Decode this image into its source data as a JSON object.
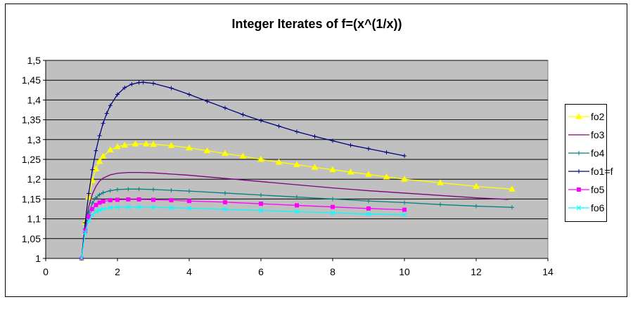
{
  "chart_data": {
    "type": "line",
    "title": "Integer Iterates of f=(x^(1/x))",
    "xlabel": "",
    "ylabel": "",
    "xlim": [
      0,
      14
    ],
    "ylim": [
      1,
      1.5
    ],
    "x_ticks": [
      0,
      2,
      4,
      6,
      8,
      10,
      12,
      14
    ],
    "x_tick_labels": [
      "0",
      "2",
      "4",
      "6",
      "8",
      "10",
      "12",
      "14"
    ],
    "y_ticks": [
      1,
      1.05,
      1.1,
      1.15,
      1.2,
      1.25,
      1.3,
      1.35,
      1.4,
      1.45,
      1.5
    ],
    "y_tick_labels": [
      "1",
      "1,05",
      "1,1",
      "1,15",
      "1,2",
      "1,25",
      "1,3",
      "1,35",
      "1,4",
      "1,45",
      "1,5"
    ],
    "grid": "horizontal",
    "plot_background": "#c0c0c0",
    "legend_position": "right",
    "series": [
      {
        "name": "fo2",
        "color": "#ffff00",
        "marker": "triangle",
        "x": [
          1,
          1.1,
          1.2,
          1.3,
          1.4,
          1.5,
          1.6,
          1.8,
          2,
          2.2,
          2.5,
          2.8,
          3,
          3.5,
          4,
          4.5,
          5,
          5.5,
          6,
          6.5,
          7,
          7.5,
          8,
          8.5,
          9,
          9.5,
          10,
          11,
          12,
          13
        ],
        "y": [
          1,
          1.092,
          1.155,
          1.197,
          1.226,
          1.245,
          1.258,
          1.274,
          1.282,
          1.286,
          1.289,
          1.289,
          1.288,
          1.285,
          1.279,
          1.272,
          1.265,
          1.258,
          1.25,
          1.243,
          1.237,
          1.23,
          1.224,
          1.218,
          1.212,
          1.206,
          1.2,
          1.191,
          1.182,
          1.175
        ]
      },
      {
        "name": "fo3",
        "color": "#800080",
        "marker": "none",
        "x": [
          1,
          1.1,
          1.2,
          1.3,
          1.4,
          1.5,
          1.6,
          1.8,
          2,
          2.3,
          2.6,
          3,
          3.5,
          4,
          5,
          6,
          7,
          8,
          9,
          10,
          11,
          12,
          12.9
        ],
        "y": [
          1,
          1.08,
          1.13,
          1.162,
          1.182,
          1.195,
          1.203,
          1.211,
          1.215,
          1.217,
          1.217,
          1.216,
          1.213,
          1.21,
          1.202,
          1.194,
          1.186,
          1.178,
          1.171,
          1.165,
          1.159,
          1.153,
          1.149
        ]
      },
      {
        "name": "fo4",
        "color": "#008080",
        "marker": "plus",
        "x": [
          1,
          1.1,
          1.2,
          1.3,
          1.4,
          1.5,
          1.6,
          1.8,
          2,
          2.3,
          2.6,
          3,
          3.5,
          4,
          5,
          6,
          7,
          8,
          9,
          10,
          11,
          12,
          13
        ],
        "y": [
          1,
          1.075,
          1.115,
          1.14,
          1.153,
          1.161,
          1.166,
          1.171,
          1.174,
          1.175,
          1.175,
          1.174,
          1.172,
          1.17,
          1.165,
          1.16,
          1.155,
          1.15,
          1.145,
          1.141,
          1.136,
          1.132,
          1.129
        ]
      },
      {
        "name": "fo1=f",
        "color": "#000080",
        "marker": "plus",
        "x": [
          1,
          1.1,
          1.2,
          1.3,
          1.4,
          1.5,
          1.6,
          1.7,
          1.8,
          2,
          2.2,
          2.4,
          2.6,
          2.718,
          3,
          3.5,
          4,
          4.5,
          5,
          5.5,
          6,
          6.5,
          7,
          7.5,
          8,
          8.5,
          9,
          9.5,
          10
        ],
        "y": [
          1,
          1.09,
          1.164,
          1.224,
          1.272,
          1.31,
          1.341,
          1.366,
          1.386,
          1.414,
          1.431,
          1.44,
          1.444,
          1.4447,
          1.442,
          1.43,
          1.414,
          1.397,
          1.38,
          1.363,
          1.348,
          1.334,
          1.32,
          1.308,
          1.297,
          1.286,
          1.277,
          1.268,
          1.259
        ]
      },
      {
        "name": "fo5",
        "color": "#ff00ff",
        "marker": "square",
        "x": [
          1,
          1.1,
          1.2,
          1.3,
          1.4,
          1.5,
          1.6,
          1.8,
          2,
          2.3,
          2.6,
          3,
          3.5,
          4,
          5,
          6,
          7,
          8,
          9,
          10
        ],
        "y": [
          1,
          1.07,
          1.105,
          1.125,
          1.135,
          1.141,
          1.144,
          1.147,
          1.148,
          1.149,
          1.149,
          1.148,
          1.147,
          1.145,
          1.142,
          1.138,
          1.134,
          1.13,
          1.126,
          1.123
        ]
      },
      {
        "name": "fo6",
        "color": "#00ffff",
        "marker": "x",
        "x": [
          1,
          1.1,
          1.2,
          1.3,
          1.4,
          1.5,
          1.6,
          1.8,
          2,
          2.3,
          2.6,
          3,
          3.5,
          4,
          5,
          6,
          7,
          8,
          9,
          10
        ],
        "y": [
          1,
          1.065,
          1.095,
          1.11,
          1.118,
          1.122,
          1.125,
          1.128,
          1.129,
          1.13,
          1.13,
          1.129,
          1.128,
          1.127,
          1.124,
          1.121,
          1.118,
          1.115,
          1.112,
          1.11
        ]
      }
    ]
  }
}
